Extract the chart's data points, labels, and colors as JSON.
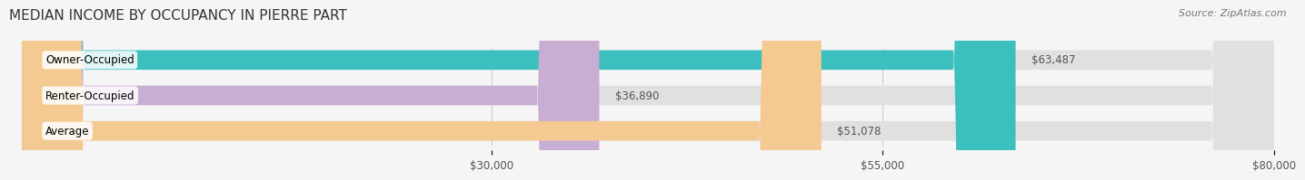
{
  "title": "MEDIAN INCOME BY OCCUPANCY IN PIERRE PART",
  "source": "Source: ZipAtlas.com",
  "categories": [
    "Owner-Occupied",
    "Renter-Occupied",
    "Average"
  ],
  "values": [
    63487,
    36890,
    51078
  ],
  "bar_colors": [
    "#3bbfbf",
    "#c9aed4",
    "#f5c992"
  ],
  "bar_bg_color": "#e8e8e8",
  "value_labels": [
    "$63,487",
    "$36,890",
    "$51,078"
  ],
  "xlim": [
    0,
    80000
  ],
  "xticks": [
    30000,
    55000,
    80000
  ],
  "xtick_labels": [
    "$30,000",
    "$55,000",
    "$80,000"
  ],
  "title_fontsize": 11,
  "label_fontsize": 8.5,
  "source_fontsize": 8,
  "background_color": "#f5f5f5"
}
